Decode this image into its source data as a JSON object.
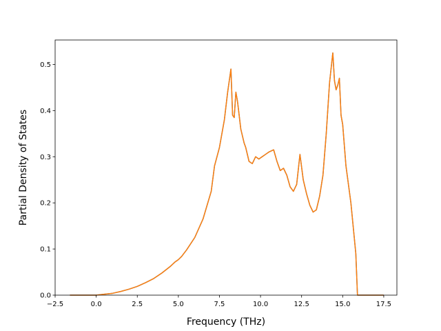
{
  "chart_data": {
    "type": "line",
    "title": "",
    "xlabel": "Frequency (THz)",
    "ylabel": "Partial Density of States",
    "xlim": [
      -2.5,
      18.3
    ],
    "ylim": [
      0.0,
      0.553
    ],
    "xticks": [
      -2.5,
      0.0,
      2.5,
      5.0,
      7.5,
      10.0,
      12.5,
      15.0,
      17.5
    ],
    "xtick_labels": [
      "−2.5",
      "0.0",
      "2.5",
      "5.0",
      "7.5",
      "10.0",
      "12.5",
      "15.0",
      "17.5"
    ],
    "yticks": [
      0.0,
      0.1,
      0.2,
      0.3,
      0.4,
      0.5
    ],
    "ytick_labels": [
      "0.0",
      "0.1",
      "0.2",
      "0.3",
      "0.4",
      "0.5"
    ],
    "grid": false,
    "series": [
      {
        "color": "#1f77b4",
        "x": [
          -1.6,
          0.0,
          0.5,
          1.0,
          1.5,
          2.0,
          2.5,
          3.0,
          3.5,
          4.0,
          4.5,
          4.8,
          5.0,
          5.2,
          5.5,
          6.0,
          6.5,
          7.0,
          7.2,
          7.5,
          7.8,
          8.0,
          8.2,
          8.3,
          8.4,
          8.5,
          8.6,
          8.8,
          9.0,
          9.1,
          9.3,
          9.5,
          9.7,
          9.9,
          10.1,
          10.3,
          10.5,
          10.8,
          11.0,
          11.2,
          11.4,
          11.6,
          11.8,
          12.0,
          12.2,
          12.4,
          12.6,
          12.8,
          13.0,
          13.2,
          13.4,
          13.6,
          13.8,
          14.0,
          14.2,
          14.4,
          14.5,
          14.6,
          14.7,
          14.8,
          14.9,
          15.0,
          15.2,
          15.5,
          15.8,
          15.9,
          16.3,
          17.5
        ],
        "y": [
          0.0,
          0.0,
          0.002,
          0.004,
          0.008,
          0.013,
          0.019,
          0.027,
          0.036,
          0.048,
          0.062,
          0.072,
          0.077,
          0.084,
          0.098,
          0.125,
          0.165,
          0.225,
          0.28,
          0.32,
          0.38,
          0.44,
          0.49,
          0.39,
          0.385,
          0.44,
          0.42,
          0.36,
          0.33,
          0.32,
          0.29,
          0.285,
          0.3,
          0.295,
          0.3,
          0.305,
          0.31,
          0.315,
          0.29,
          0.27,
          0.275,
          0.26,
          0.235,
          0.225,
          0.24,
          0.305,
          0.25,
          0.22,
          0.195,
          0.18,
          0.185,
          0.215,
          0.26,
          0.35,
          0.46,
          0.525,
          0.465,
          0.445,
          0.455,
          0.47,
          0.39,
          0.37,
          0.28,
          0.2,
          0.09,
          0.0,
          0.0,
          0.0
        ]
      },
      {
        "color": "#ff7f0e",
        "x": [
          -1.6,
          0.0,
          0.5,
          1.0,
          1.5,
          2.0,
          2.5,
          3.0,
          3.5,
          4.0,
          4.5,
          4.8,
          5.0,
          5.2,
          5.5,
          6.0,
          6.5,
          7.0,
          7.2,
          7.5,
          7.8,
          8.0,
          8.2,
          8.3,
          8.4,
          8.5,
          8.6,
          8.8,
          9.0,
          9.1,
          9.3,
          9.5,
          9.7,
          9.9,
          10.1,
          10.3,
          10.5,
          10.8,
          11.0,
          11.2,
          11.4,
          11.6,
          11.8,
          12.0,
          12.2,
          12.4,
          12.6,
          12.8,
          13.0,
          13.2,
          13.4,
          13.6,
          13.8,
          14.0,
          14.2,
          14.4,
          14.5,
          14.6,
          14.7,
          14.8,
          14.9,
          15.0,
          15.2,
          15.5,
          15.8,
          15.9,
          16.3,
          17.5
        ],
        "y": [
          0.0,
          0.0,
          0.002,
          0.004,
          0.008,
          0.013,
          0.019,
          0.027,
          0.036,
          0.048,
          0.062,
          0.072,
          0.077,
          0.084,
          0.098,
          0.125,
          0.165,
          0.225,
          0.28,
          0.32,
          0.38,
          0.44,
          0.49,
          0.39,
          0.385,
          0.44,
          0.42,
          0.36,
          0.33,
          0.32,
          0.29,
          0.285,
          0.3,
          0.295,
          0.3,
          0.305,
          0.31,
          0.315,
          0.29,
          0.27,
          0.275,
          0.26,
          0.235,
          0.225,
          0.24,
          0.305,
          0.25,
          0.22,
          0.195,
          0.18,
          0.185,
          0.215,
          0.26,
          0.35,
          0.46,
          0.525,
          0.465,
          0.445,
          0.455,
          0.47,
          0.39,
          0.37,
          0.28,
          0.2,
          0.09,
          0.0,
          0.0,
          0.0
        ]
      }
    ]
  }
}
